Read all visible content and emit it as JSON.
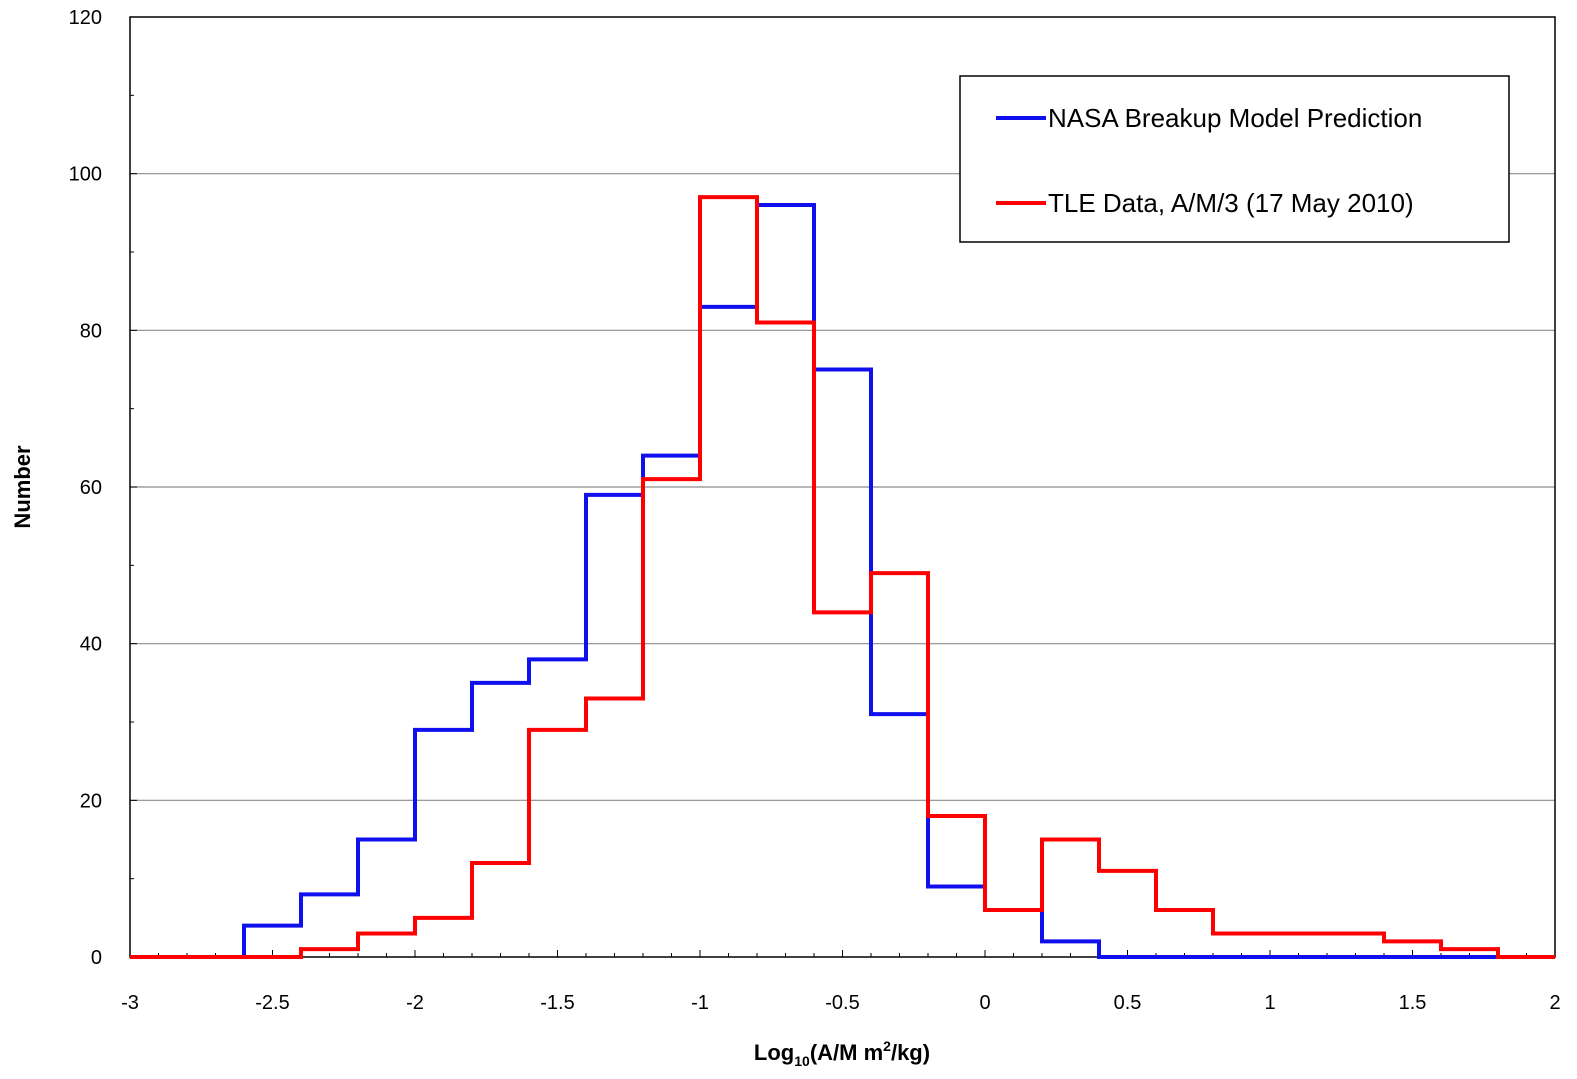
{
  "chart_data": {
    "type": "line",
    "step": "histogram",
    "xlabel": {
      "prefix": "Log",
      "sub": "10",
      "middle": "(A/M m",
      "sup": "2",
      "suffix": "/kg)"
    },
    "ylabel": "Number",
    "xlim": [
      -3,
      2
    ],
    "ylim": [
      0,
      120
    ],
    "xticks": [
      "-3",
      "-2.5",
      "-2",
      "-1.5",
      "-1",
      "-0.5",
      "0",
      "0.5",
      "1",
      "1.5",
      "2"
    ],
    "yticks": [
      "0",
      "20",
      "40",
      "60",
      "80",
      "100",
      "120"
    ],
    "grid": "horizontal major",
    "legend_position": "top-right",
    "bin_edges": [
      -3,
      -2.8,
      -2.6,
      -2.4,
      -2.2,
      -2,
      -1.8,
      -1.6,
      -1.4,
      -1.2,
      -1,
      -0.8,
      -0.6,
      -0.4,
      -0.2,
      0,
      0.2,
      0.4,
      0.6,
      0.8,
      1,
      1.2,
      1.4,
      1.6,
      1.8,
      2
    ],
    "series": [
      {
        "name": "NASA Breakup Model Prediction",
        "color": "#1010ee",
        "values": [
          0,
          0,
          4,
          8,
          15,
          29,
          35,
          38,
          59,
          64,
          83,
          96,
          75,
          31,
          9,
          6,
          2,
          0,
          0,
          0,
          0,
          0,
          0,
          0,
          0
        ]
      },
      {
        "name": "TLE Data, A/M/3 (17 May 2010)",
        "color": "#ff0000",
        "values": [
          0,
          0,
          0,
          1,
          3,
          5,
          12,
          29,
          33,
          61,
          97,
          81,
          44,
          49,
          18,
          6,
          15,
          11,
          6,
          3,
          3,
          3,
          2,
          1,
          0
        ]
      }
    ]
  }
}
